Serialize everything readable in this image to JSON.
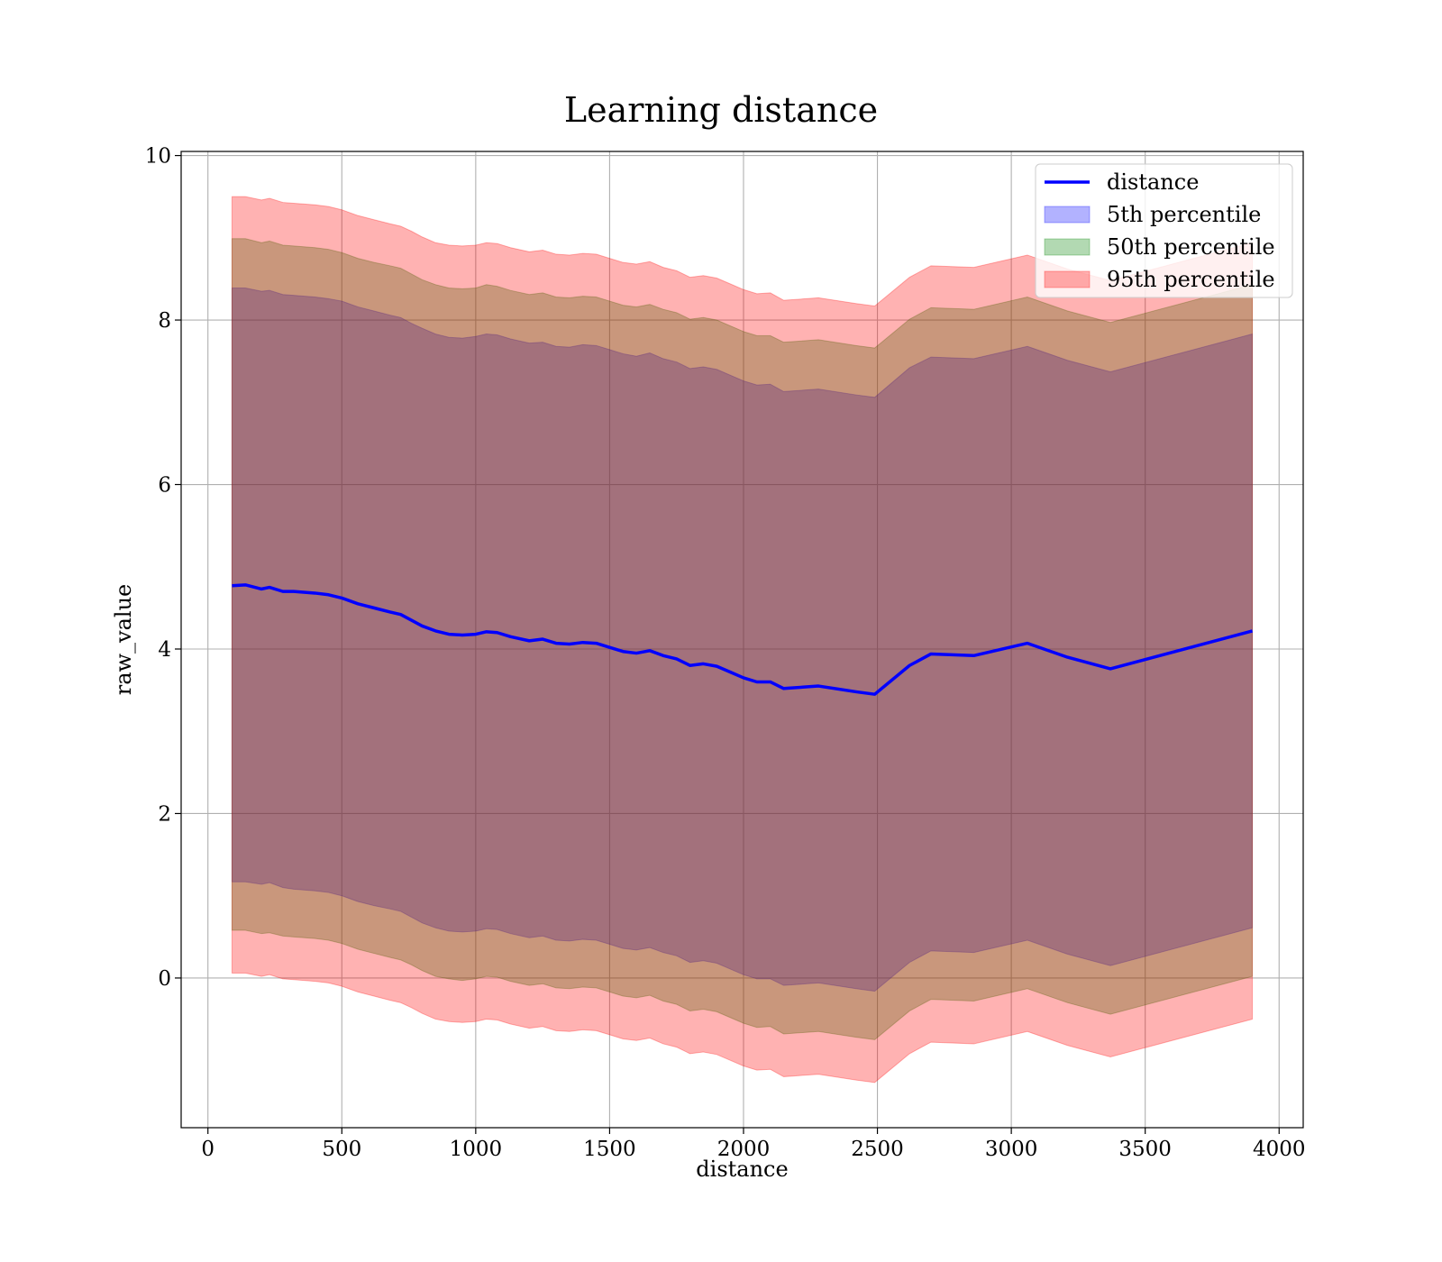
{
  "chart_data": {
    "type": "area",
    "title": "Learning distance",
    "xlabel": "distance",
    "ylabel": "raw_value",
    "xlim": [
      -100,
      4090
    ],
    "ylim": [
      -1.82,
      10.05
    ],
    "xticks": [
      0,
      500,
      1000,
      1500,
      2000,
      2500,
      3000,
      3500,
      4000
    ],
    "yticks": [
      0,
      2,
      4,
      6,
      8,
      10
    ],
    "grid": true,
    "legend_position": "top-right",
    "colors": {
      "line": "#0000ff",
      "band_5th": "#0000ff",
      "band_50th": "#008000",
      "band_95th": "#ff0000"
    },
    "legend": [
      {
        "label": "distance",
        "kind": "line",
        "color": "#0000ff"
      },
      {
        "label": "5th percentile",
        "kind": "band",
        "color": "#0000ff"
      },
      {
        "label": "50th percentile",
        "kind": "band",
        "color": "#008000"
      },
      {
        "label": "95th percentile",
        "kind": "band",
        "color": "#ff0000"
      }
    ],
    "x": [
      90,
      140,
      200,
      230,
      280,
      320,
      400,
      450,
      500,
      560,
      620,
      680,
      720,
      760,
      800,
      850,
      900,
      950,
      1000,
      1040,
      1080,
      1130,
      1200,
      1250,
      1300,
      1350,
      1400,
      1450,
      1500,
      1550,
      1600,
      1650,
      1700,
      1750,
      1800,
      1850,
      1900,
      1950,
      2000,
      2050,
      2100,
      2150,
      2280,
      2420,
      2490,
      2620,
      2700,
      2860,
      3060,
      3210,
      3370,
      3900
    ],
    "series": [
      {
        "name": "distance",
        "values": [
          4.77,
          4.78,
          4.73,
          4.75,
          4.7,
          4.7,
          4.68,
          4.66,
          4.62,
          4.55,
          4.5,
          4.45,
          4.42,
          4.35,
          4.28,
          4.22,
          4.18,
          4.17,
          4.18,
          4.21,
          4.2,
          4.15,
          4.1,
          4.12,
          4.07,
          4.06,
          4.08,
          4.07,
          4.02,
          3.97,
          3.95,
          3.98,
          3.92,
          3.88,
          3.8,
          3.82,
          3.79,
          3.72,
          3.65,
          3.6,
          3.6,
          3.52,
          3.55,
          3.48,
          3.45,
          3.8,
          3.94,
          3.92,
          4.07,
          3.9,
          3.76,
          4.22
        ]
      },
      {
        "name": "5th percentile",
        "lower": [
          1.17,
          1.17,
          1.14,
          1.16,
          1.1,
          1.08,
          1.06,
          1.04,
          1.0,
          0.93,
          0.88,
          0.84,
          0.81,
          0.74,
          0.67,
          0.61,
          0.57,
          0.56,
          0.57,
          0.6,
          0.59,
          0.54,
          0.49,
          0.51,
          0.46,
          0.45,
          0.47,
          0.46,
          0.41,
          0.36,
          0.34,
          0.37,
          0.31,
          0.27,
          0.19,
          0.21,
          0.18,
          0.11,
          0.04,
          -0.01,
          -0.01,
          -0.09,
          -0.06,
          -0.13,
          -0.16,
          0.19,
          0.33,
          0.31,
          0.46,
          0.29,
          0.15,
          0.61
        ],
        "upper": [
          8.39,
          8.39,
          8.35,
          8.36,
          8.31,
          8.3,
          8.28,
          8.26,
          8.23,
          8.16,
          8.11,
          8.06,
          8.03,
          7.96,
          7.9,
          7.83,
          7.79,
          7.78,
          7.8,
          7.83,
          7.82,
          7.77,
          7.72,
          7.73,
          7.68,
          7.67,
          7.7,
          7.69,
          7.64,
          7.59,
          7.56,
          7.6,
          7.53,
          7.49,
          7.41,
          7.43,
          7.4,
          7.33,
          7.26,
          7.21,
          7.22,
          7.13,
          7.16,
          7.09,
          7.06,
          7.42,
          7.55,
          7.53,
          7.68,
          7.51,
          7.37,
          7.83
        ]
      },
      {
        "name": "50th percentile",
        "lower": [
          0.58,
          0.58,
          0.54,
          0.55,
          0.51,
          0.5,
          0.48,
          0.46,
          0.42,
          0.35,
          0.3,
          0.25,
          0.22,
          0.16,
          0.09,
          0.02,
          -0.01,
          -0.03,
          -0.01,
          0.02,
          0.01,
          -0.04,
          -0.09,
          -0.07,
          -0.12,
          -0.13,
          -0.11,
          -0.12,
          -0.17,
          -0.22,
          -0.24,
          -0.21,
          -0.28,
          -0.32,
          -0.4,
          -0.38,
          -0.41,
          -0.48,
          -0.55,
          -0.6,
          -0.59,
          -0.68,
          -0.65,
          -0.72,
          -0.75,
          -0.4,
          -0.26,
          -0.28,
          -0.13,
          -0.3,
          -0.44,
          0.02
        ],
        "upper": [
          8.99,
          8.99,
          8.94,
          8.96,
          8.91,
          8.9,
          8.88,
          8.86,
          8.82,
          8.75,
          8.7,
          8.66,
          8.63,
          8.56,
          8.49,
          8.43,
          8.39,
          8.38,
          8.39,
          8.43,
          8.41,
          8.36,
          8.31,
          8.33,
          8.28,
          8.27,
          8.29,
          8.28,
          8.23,
          8.18,
          8.16,
          8.19,
          8.13,
          8.09,
          8.01,
          8.03,
          8.0,
          7.93,
          7.86,
          7.81,
          7.81,
          7.73,
          7.76,
          7.69,
          7.66,
          8.01,
          8.15,
          8.13,
          8.28,
          8.11,
          7.97,
          8.43
        ]
      },
      {
        "name": "95th percentile",
        "lower": [
          0.06,
          0.06,
          0.02,
          0.04,
          -0.01,
          -0.02,
          -0.04,
          -0.06,
          -0.1,
          -0.17,
          -0.22,
          -0.27,
          -0.3,
          -0.36,
          -0.43,
          -0.5,
          -0.53,
          -0.54,
          -0.53,
          -0.5,
          -0.51,
          -0.56,
          -0.61,
          -0.59,
          -0.64,
          -0.65,
          -0.63,
          -0.64,
          -0.69,
          -0.74,
          -0.76,
          -0.73,
          -0.8,
          -0.84,
          -0.92,
          -0.9,
          -0.93,
          -1.0,
          -1.07,
          -1.12,
          -1.11,
          -1.2,
          -1.17,
          -1.24,
          -1.27,
          -0.92,
          -0.78,
          -0.8,
          -0.65,
          -0.82,
          -0.96,
          -0.5
        ],
        "upper": [
          9.5,
          9.5,
          9.46,
          9.48,
          9.43,
          9.42,
          9.4,
          9.38,
          9.34,
          9.27,
          9.22,
          9.17,
          9.14,
          9.08,
          9.01,
          8.94,
          8.91,
          8.9,
          8.91,
          8.94,
          8.93,
          8.88,
          8.83,
          8.85,
          8.8,
          8.79,
          8.81,
          8.8,
          8.75,
          8.7,
          8.68,
          8.71,
          8.64,
          8.6,
          8.52,
          8.54,
          8.51,
          8.44,
          8.37,
          8.32,
          8.33,
          8.24,
          8.27,
          8.2,
          8.17,
          8.52,
          8.66,
          8.64,
          8.79,
          8.62,
          8.48,
          8.94
        ]
      }
    ]
  }
}
